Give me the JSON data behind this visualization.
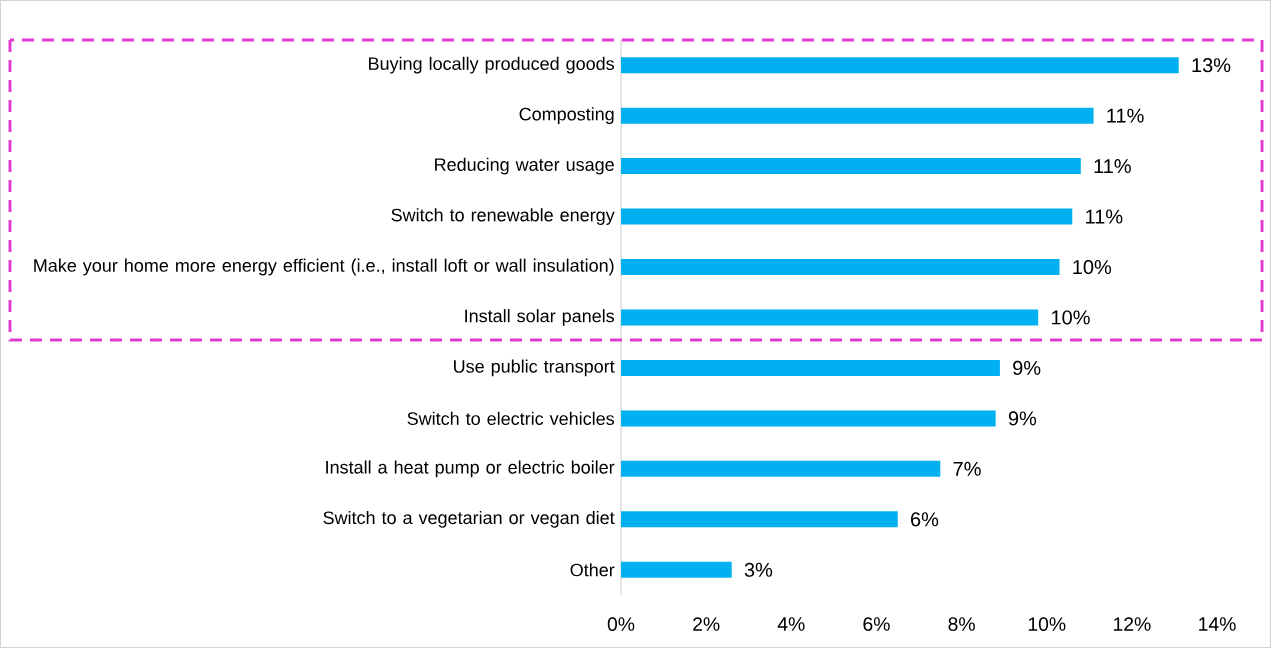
{
  "chart_data": {
    "type": "bar",
    "orientation": "horizontal",
    "categories": [
      "Buying locally produced goods",
      "Composting",
      "Reducing water usage",
      "Switch to renewable energy",
      "Make your home more energy efficient (i.e., install loft or wall insulation)",
      "Install solar panels",
      "Use public transport",
      "Switch to electric vehicles",
      "Install a heat pump or electric boiler",
      "Switch to a vegetarian or vegan diet",
      "Other"
    ],
    "values": [
      13.1,
      11.1,
      10.8,
      10.6,
      10.3,
      9.8,
      8.9,
      8.8,
      7.5,
      6.5,
      2.6
    ],
    "value_labels": [
      "13%",
      "11%",
      "11%",
      "11%",
      "10%",
      "10%",
      "9%",
      "9%",
      "7%",
      "6%",
      "3%"
    ],
    "color": "#00b0f0",
    "xlim": [
      0,
      14
    ],
    "xticks": [
      {
        "value": 0,
        "label": "0%"
      },
      {
        "value": 2,
        "label": "2%"
      },
      {
        "value": 4,
        "label": "4%"
      },
      {
        "value": 6,
        "label": "6%"
      },
      {
        "value": 8,
        "label": "8%"
      },
      {
        "value": 10,
        "label": "10%"
      },
      {
        "value": 12,
        "label": "12%"
      },
      {
        "value": 14,
        "label": "14%"
      }
    ],
    "grid": false
  }
}
